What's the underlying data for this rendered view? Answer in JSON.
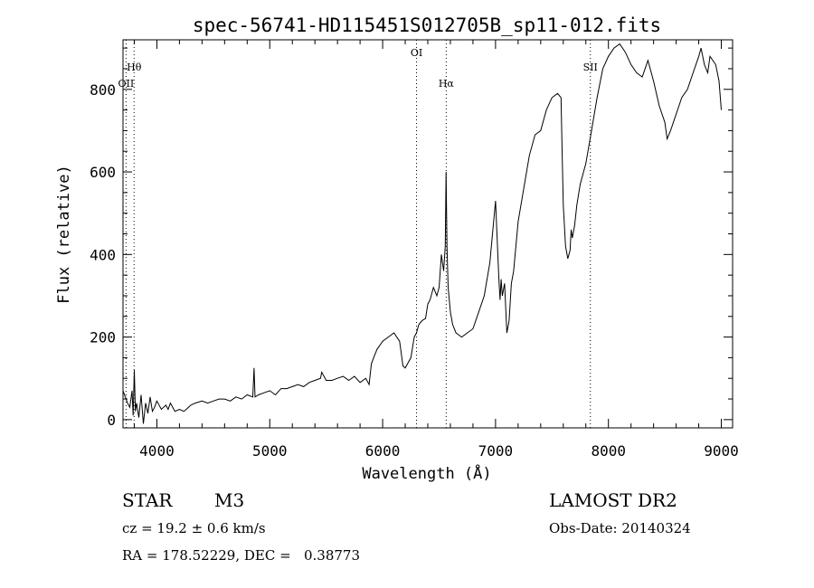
{
  "chart_data": {
    "type": "line",
    "title": "spec-56741-HD115451S012705B_sp11-012.fits",
    "xlabel": "Wavelength (Å)",
    "ylabel": "Flux (relative)",
    "xlim": [
      3700,
      9100
    ],
    "ylim": [
      -20,
      920
    ],
    "grid": false,
    "x_ticks": [
      4000,
      5000,
      6000,
      7000,
      8000,
      9000
    ],
    "y_ticks": [
      0,
      200,
      400,
      600,
      800
    ],
    "series": [
      {
        "x": [
          3700,
          3720,
          3740,
          3760,
          3780,
          3790,
          3800,
          3810,
          3820,
          3840,
          3860,
          3880,
          3900,
          3920,
          3940,
          3960,
          3980,
          4000,
          4040,
          4080,
          4100,
          4120,
          4160,
          4200,
          4240,
          4280,
          4300,
          4340,
          4400,
          4450,
          4500,
          4550,
          4600,
          4650,
          4700,
          4750,
          4800,
          4850,
          4861,
          4870,
          4900,
          4950,
          5000,
          5050,
          5100,
          5150,
          5200,
          5250,
          5300,
          5350,
          5400,
          5450,
          5460,
          5500,
          5550,
          5600,
          5650,
          5700,
          5750,
          5800,
          5850,
          5880,
          5900,
          5920,
          5950,
          6000,
          6050,
          6100,
          6150,
          6170,
          6180,
          6200,
          6250,
          6280,
          6300,
          6320,
          6350,
          6380,
          6400,
          6420,
          6450,
          6480,
          6500,
          6520,
          6540,
          6555,
          6562,
          6570,
          6580,
          6600,
          6620,
          6650,
          6700,
          6750,
          6800,
          6850,
          6900,
          6950,
          7000,
          7030,
          7040,
          7050,
          7060,
          7080,
          7100,
          7120,
          7140,
          7160,
          7180,
          7200,
          7250,
          7300,
          7350,
          7400,
          7450,
          7500,
          7550,
          7580,
          7590,
          7600,
          7620,
          7640,
          7660,
          7670,
          7680,
          7700,
          7720,
          7750,
          7800,
          7850,
          7900,
          7950,
          8000,
          8050,
          8100,
          8150,
          8200,
          8250,
          8300,
          8350,
          8400,
          8450,
          8500,
          8520,
          8550,
          8600,
          8650,
          8700,
          8750,
          8800,
          8820,
          8850,
          8880,
          8900,
          8950,
          8980,
          9000
        ],
        "y": [
          70,
          55,
          40,
          30,
          70,
          10,
          120,
          20,
          40,
          5,
          60,
          -10,
          40,
          15,
          55,
          20,
          30,
          45,
          25,
          35,
          25,
          40,
          20,
          25,
          20,
          30,
          35,
          40,
          45,
          40,
          45,
          50,
          50,
          45,
          55,
          50,
          60,
          55,
          125,
          55,
          60,
          65,
          70,
          60,
          75,
          75,
          80,
          85,
          80,
          90,
          95,
          100,
          115,
          95,
          95,
          100,
          105,
          95,
          105,
          90,
          100,
          85,
          135,
          150,
          170,
          190,
          200,
          210,
          190,
          150,
          130,
          125,
          150,
          200,
          210,
          230,
          240,
          245,
          280,
          290,
          320,
          300,
          320,
          400,
          360,
          420,
          600,
          420,
          320,
          260,
          230,
          210,
          200,
          210,
          220,
          260,
          300,
          380,
          530,
          340,
          290,
          340,
          300,
          330,
          210,
          240,
          330,
          360,
          420,
          480,
          560,
          640,
          690,
          700,
          750,
          780,
          790,
          780,
          650,
          520,
          420,
          390,
          410,
          460,
          440,
          470,
          520,
          570,
          620,
          700,
          780,
          850,
          880,
          900,
          910,
          890,
          860,
          840,
          830,
          870,
          820,
          760,
          720,
          680,
          700,
          740,
          780,
          800,
          840,
          880,
          900,
          860,
          840,
          880,
          860,
          820,
          750
        ]
      }
    ],
    "annotations": [
      {
        "label": "Hθ",
        "x": 3798
      },
      {
        "label": "OII",
        "x": 3727
      },
      {
        "label": "OI",
        "x": 6300
      },
      {
        "label": "Hα",
        "x": 6563
      },
      {
        "label": "SII",
        "x": 7840
      }
    ]
  },
  "info": {
    "class_label": "STAR",
    "subclass": "M3",
    "survey": "LAMOST DR2",
    "cz": "cz = 19.2 ± 0.6 km/s",
    "obs_date": "Obs-Date: 20140324",
    "radec": "RA = 178.52229, DEC =   0.38773"
  }
}
